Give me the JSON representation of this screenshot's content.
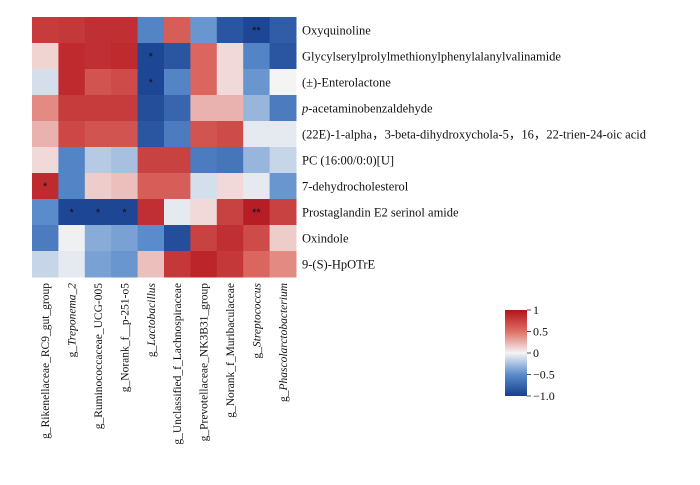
{
  "chart_data": {
    "type": "heatmap",
    "title": "",
    "xlabel": "",
    "ylabel": "",
    "rows": [
      {
        "label": "Oxyquinoline"
      },
      {
        "label": "Glycylserylprolylmethionylphenylalanylvalinamide"
      },
      {
        "label": "(±)-Enterolactone"
      },
      {
        "label": "p-acetaminobenzaldehyde",
        "italic_prefix": "p"
      },
      {
        "label": "(22E)-1-alpha，3-beta-dihydroxychola-5，16，22-trien-24-oic acid"
      },
      {
        "label": "PC (16:00/0:0)[U]"
      },
      {
        "label": "7-dehydrocholesterol"
      },
      {
        "label": "Prostaglandin E2 serinol amide"
      },
      {
        "label": "Oxindole"
      },
      {
        "label": "9-(S)-HpOTrE"
      }
    ],
    "columns": [
      {
        "prefix": "g_",
        "name": "Rikenellaceae_RC9_gut_group",
        "italic": false
      },
      {
        "prefix": "g_",
        "name": "Treponema_2",
        "italic": true
      },
      {
        "prefix": "g_",
        "name": "Ruminococcaceae_UCG-005",
        "italic": false
      },
      {
        "prefix": "g_",
        "name": "Norank_f__p-251-o5",
        "italic": false
      },
      {
        "prefix": "g_",
        "name": "Lactobacillus",
        "italic": true
      },
      {
        "prefix": "g_",
        "name": "Unclassified_f_Lachnospiraceae",
        "italic": false
      },
      {
        "prefix": "g_",
        "name": "Prevotellaceae_NK3B31_group",
        "italic": false
      },
      {
        "prefix": "g_",
        "name": "Norank_f_Muribaculaceae",
        "italic": false
      },
      {
        "prefix": "g_",
        "name": "Streptococcus",
        "italic": true
      },
      {
        "prefix": "g_",
        "name": "Phascolarctobacterium",
        "italic": true
      }
    ],
    "values": [
      [
        0.78,
        0.8,
        0.85,
        0.85,
        -0.55,
        0.6,
        -0.45,
        -0.85,
        -0.95,
        -0.8
      ],
      [
        0.12,
        0.88,
        0.85,
        0.88,
        -0.95,
        -0.85,
        0.55,
        0.1,
        -0.55,
        -0.85
      ],
      [
        -0.1,
        0.88,
        0.65,
        0.7,
        -0.95,
        -0.55,
        0.55,
        0.1,
        -0.45,
        0.0
      ],
      [
        0.4,
        0.78,
        0.78,
        0.78,
        -0.9,
        -0.75,
        0.25,
        0.25,
        -0.3,
        -0.6
      ],
      [
        0.25,
        0.72,
        0.65,
        0.65,
        -0.85,
        -0.6,
        0.65,
        0.7,
        -0.05,
        -0.05
      ],
      [
        0.1,
        -0.55,
        -0.2,
        -0.25,
        0.75,
        0.75,
        -0.6,
        -0.65,
        -0.3,
        -0.15
      ],
      [
        0.88,
        -0.55,
        0.15,
        0.2,
        0.6,
        0.6,
        -0.1,
        0.1,
        -0.05,
        -0.45
      ],
      [
        -0.5,
        -0.95,
        -0.95,
        -0.95,
        0.85,
        -0.05,
        0.1,
        0.75,
        0.95,
        0.75
      ],
      [
        -0.6,
        -0.02,
        -0.35,
        -0.4,
        -0.5,
        -0.9,
        0.75,
        0.85,
        0.7,
        0.15
      ],
      [
        -0.15,
        -0.05,
        -0.4,
        -0.45,
        0.2,
        0.8,
        0.9,
        0.8,
        0.55,
        0.4
      ]
    ],
    "significance": [
      [
        "",
        "",
        "",
        "",
        "",
        "",
        "",
        "",
        "**",
        ""
      ],
      [
        "",
        "",
        "",
        "",
        "*",
        "",
        "",
        "",
        "",
        ""
      ],
      [
        "",
        "",
        "",
        "",
        "*",
        "",
        "",
        "",
        "",
        ""
      ],
      [
        "",
        "",
        "",
        "",
        "",
        "",
        "",
        "",
        "",
        ""
      ],
      [
        "",
        "",
        "",
        "",
        "",
        "",
        "",
        "",
        "",
        ""
      ],
      [
        "",
        "",
        "",
        "",
        "",
        "",
        "",
        "",
        "",
        ""
      ],
      [
        "*",
        "",
        "",
        "",
        "",
        "",
        "",
        "",
        "",
        ""
      ],
      [
        "",
        "*",
        "*",
        "*",
        "",
        "",
        "",
        "",
        "**",
        ""
      ],
      [
        "",
        "",
        "",
        "",
        "",
        "",
        "",
        "",
        "",
        ""
      ],
      [
        "",
        "",
        "",
        "",
        "",
        "",
        "",
        "",
        "",
        ""
      ]
    ],
    "color_scale": {
      "range": [
        -1,
        1
      ],
      "stops": [
        {
          "value": -1,
          "color": "#163e8e"
        },
        {
          "value": -0.5,
          "color": "#5a8ccb"
        },
        {
          "value": 0,
          "color": "#f4f4f4"
        },
        {
          "value": 0.5,
          "color": "#df6f67"
        },
        {
          "value": 1,
          "color": "#b3141c"
        }
      ],
      "ticks": [
        {
          "value": 1,
          "label": "1"
        },
        {
          "value": 0.5,
          "label": "0.5"
        },
        {
          "value": 0,
          "label": "0"
        },
        {
          "value": -0.5,
          "label": "−0.5"
        },
        {
          "value": -1,
          "label": "−1.0"
        }
      ]
    }
  }
}
